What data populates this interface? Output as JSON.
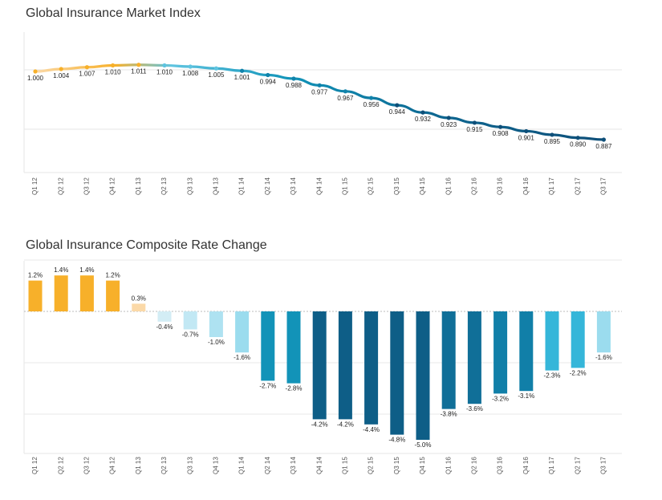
{
  "charts": {
    "index": {
      "title": "Global Insurance Market Index"
    },
    "rate": {
      "title": "Global Insurance Composite Rate Change"
    }
  },
  "chart_data": [
    {
      "type": "line",
      "title": "Global Insurance Market Index",
      "categories": [
        "Q1 12",
        "Q2 12",
        "Q3 12",
        "Q4 12",
        "Q1 13",
        "Q2 13",
        "Q3 13",
        "Q4 13",
        "Q1 14",
        "Q2 14",
        "Q3 14",
        "Q4 14",
        "Q1 15",
        "Q2 15",
        "Q3 15",
        "Q4 15",
        "Q1 16",
        "Q2 16",
        "Q3 16",
        "Q4 16",
        "Q1 17",
        "Q2 17",
        "Q3 17"
      ],
      "values": [
        1.0,
        1.004,
        1.007,
        1.01,
        1.011,
        1.01,
        1.008,
        1.005,
        1.001,
        0.994,
        0.988,
        0.977,
        0.967,
        0.956,
        0.944,
        0.932,
        0.923,
        0.915,
        0.908,
        0.901,
        0.895,
        0.89,
        0.887
      ],
      "data_labels": [
        "1.000",
        "1.004",
        "1.007",
        "1.010",
        "1.011",
        "1.010",
        "1.008",
        "1.005",
        "1.001",
        "0.994",
        "0.988",
        "0.977",
        "0.967",
        "0.956",
        "0.944",
        "0.932",
        "0.923",
        "0.915",
        "0.908",
        "0.901",
        "0.895",
        "0.890",
        "0.887"
      ],
      "grid": true,
      "colors": {
        "low": "#f7b02a",
        "mid": "#5fc4e0",
        "high": "#0e4f79"
      }
    },
    {
      "type": "bar",
      "title": "Global Insurance Composite Rate Change",
      "categories": [
        "Q1 12",
        "Q2 12",
        "Q3 12",
        "Q4 12",
        "Q1 13",
        "Q2 13",
        "Q3 13",
        "Q4 13",
        "Q1 14",
        "Q2 14",
        "Q3 14",
        "Q4 14",
        "Q1 15",
        "Q2 15",
        "Q3 15",
        "Q4 15",
        "Q1 16",
        "Q2 16",
        "Q3 16",
        "Q4 16",
        "Q1 17",
        "Q2 17",
        "Q3 17"
      ],
      "values": [
        1.2,
        1.4,
        1.4,
        1.2,
        0.3,
        -0.4,
        -0.7,
        -1.0,
        -1.6,
        -2.7,
        -2.8,
        -4.2,
        -4.2,
        -4.4,
        -4.8,
        -5.0,
        -3.8,
        -3.6,
        -3.2,
        -3.1,
        -2.3,
        -2.2,
        -1.6
      ],
      "data_labels": [
        "1.2%",
        "1.4%",
        "1.4%",
        "1.2%",
        "0.3%",
        "-0.4%",
        "-0.7%",
        "-1.0%",
        "-1.6%",
        "-2.7%",
        "-2.8%",
        "-4.2%",
        "-4.2%",
        "-4.4%",
        "-4.8%",
        "-5.0%",
        "-3.8%",
        "-3.6%",
        "-3.2%",
        "-3.1%",
        "-2.3%",
        "-2.2%",
        "-1.6%"
      ],
      "bar_colors": [
        "#f7b02a",
        "#f7b02a",
        "#f7b02a",
        "#f7b02a",
        "#fbd9a8",
        "#d3edf5",
        "#c2e8f4",
        "#aee2f1",
        "#9bdcee",
        "#1293b8",
        "#1293b8",
        "#0e5e87",
        "#0e5e87",
        "#0e5e87",
        "#0e5e87",
        "#0e5e87",
        "#106f98",
        "#106f98",
        "#117fa8",
        "#117fa8",
        "#35b6d9",
        "#35b6d9",
        "#9bdcee"
      ],
      "grid": true
    }
  ]
}
